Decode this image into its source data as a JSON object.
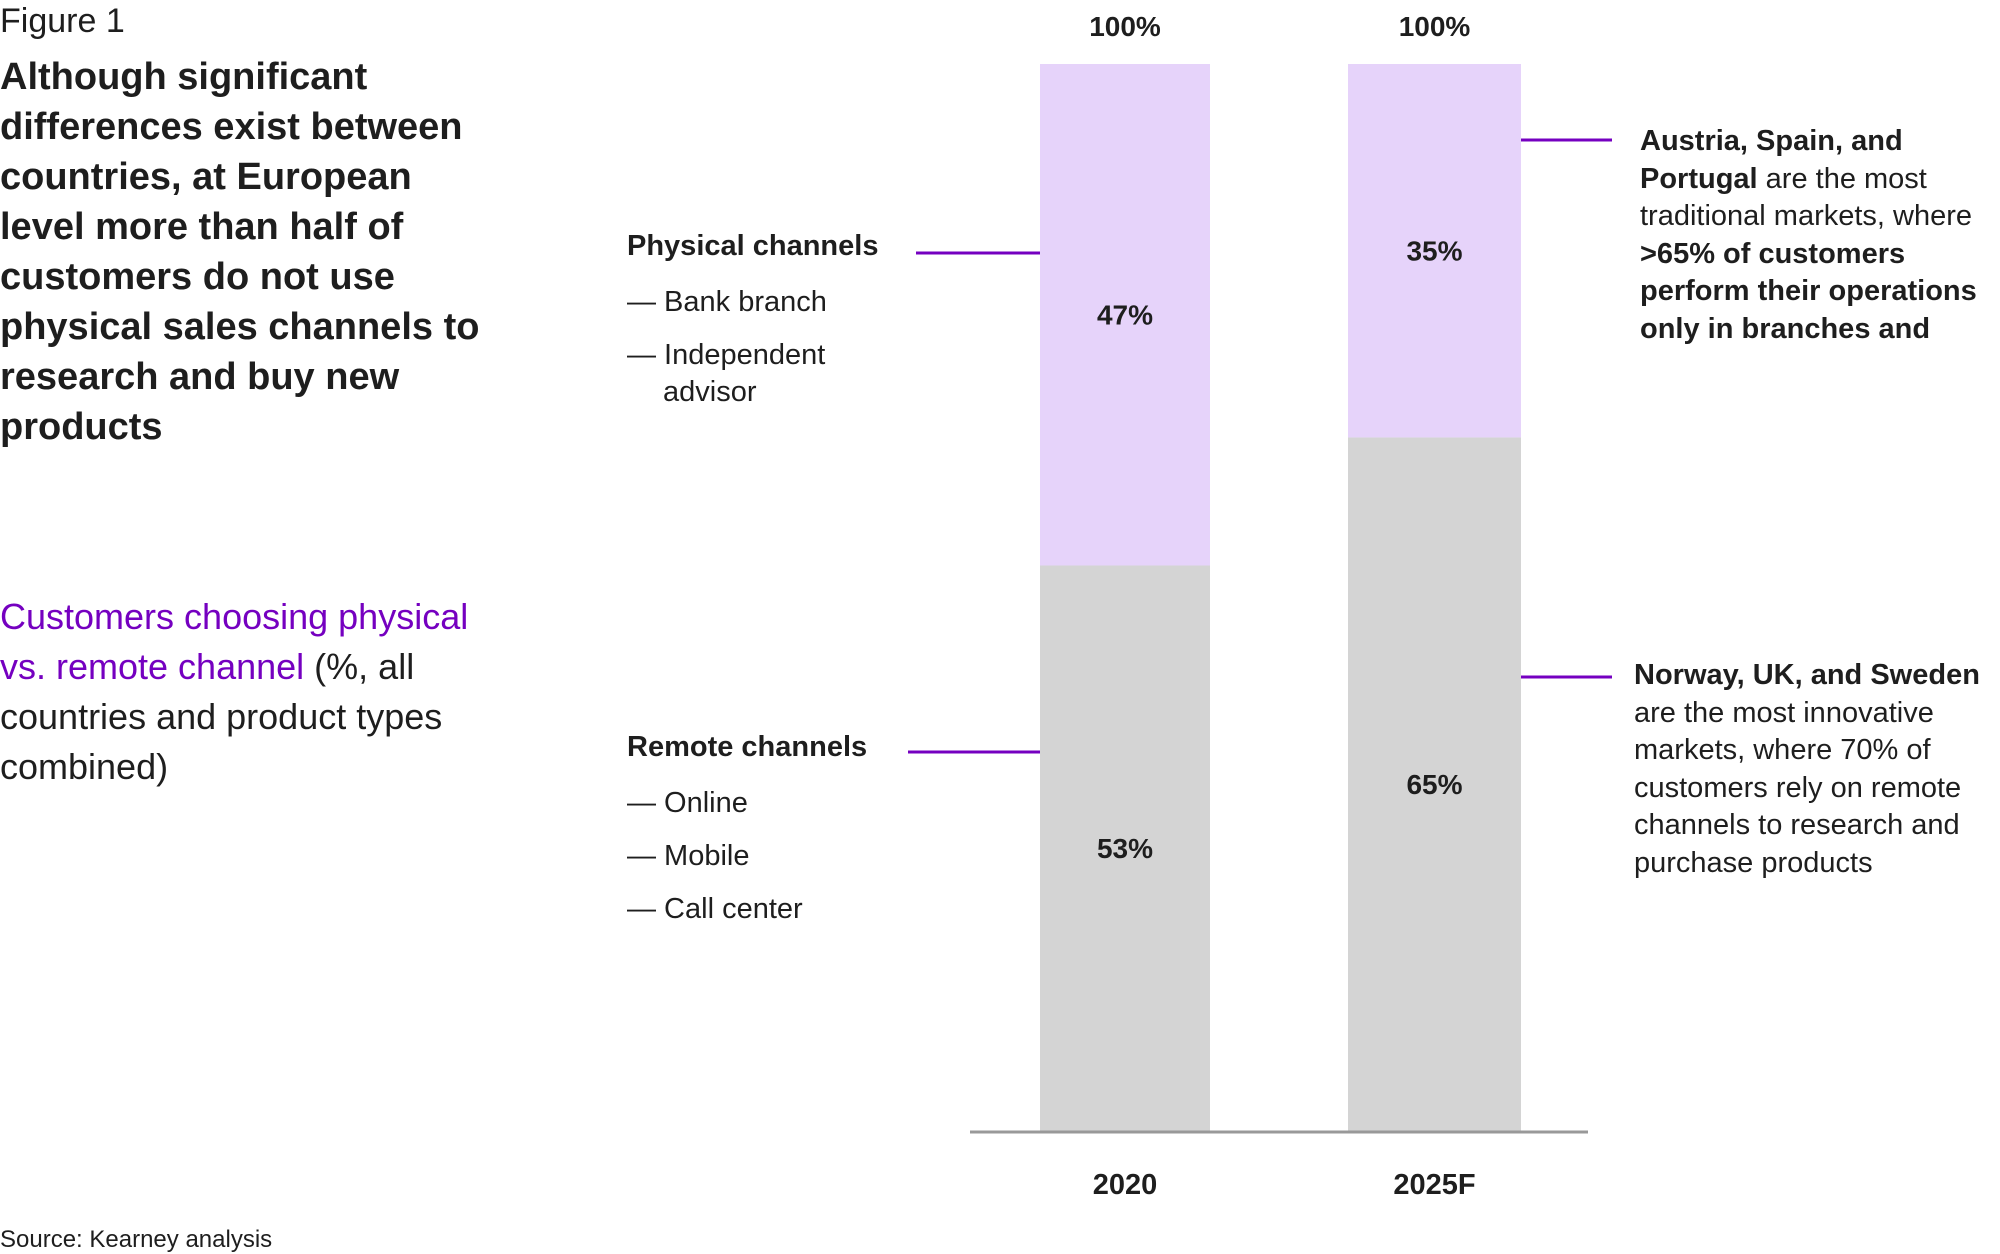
{
  "figure_label": "Figure 1",
  "headline": "Although significant differences exist between countries, at European level more than half of customers do not use physical sales channels to research and buy new products",
  "subtitle": {
    "highlight": "Customers choosing physical vs. remote channel",
    "rest": "(%, all countries and product types combined)"
  },
  "physical": {
    "title": "Physical channels",
    "items": [
      "— Bank branch",
      "— Independent",
      "advisor"
    ]
  },
  "remote": {
    "title": "Remote channels",
    "items": [
      "— Online",
      "— Mobile",
      "— Call center"
    ]
  },
  "callout_top": {
    "bold1": "Austria, Spain, and",
    "bold2": "Portugal",
    "text1": " are the most",
    "text2": "traditional markets, where",
    "bold3": ">65% of customers",
    "bold4": "perform their operations",
    "bold5": "only in branches and"
  },
  "callout_bottom": {
    "bold1": "Norway, UK, and Sweden",
    "lines": [
      "are the most innovative",
      "markets, where 70% of",
      "customers rely on remote",
      "channels to research and",
      "purchase products"
    ]
  },
  "source": "Source: Kearney analysis",
  "colors": {
    "physical": "#e6d3fa",
    "remote": "#d4d4d4",
    "accent": "#7500c0",
    "axis": "#999999",
    "text": "#1e1e1e"
  },
  "chart_data": {
    "type": "bar",
    "stacked": true,
    "categories": [
      "2020",
      "2025F"
    ],
    "totals": [
      "100%",
      "100%"
    ],
    "series": [
      {
        "name": "Remote channels",
        "values": [
          53,
          65
        ],
        "labels": [
          "53%",
          "65%"
        ]
      },
      {
        "name": "Physical channels",
        "values": [
          47,
          35
        ],
        "labels": [
          "47%",
          "35%"
        ]
      }
    ],
    "ylim": [
      0,
      100
    ]
  }
}
